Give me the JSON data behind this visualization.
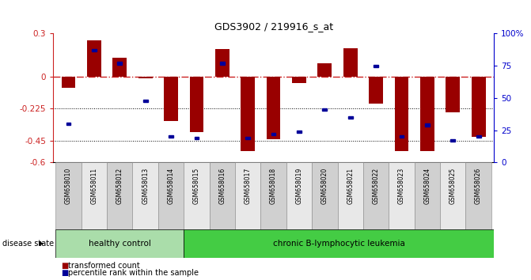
{
  "title": "GDS3902 / 219916_s_at",
  "samples": [
    "GSM658010",
    "GSM658011",
    "GSM658012",
    "GSM658013",
    "GSM658014",
    "GSM658015",
    "GSM658016",
    "GSM658017",
    "GSM658018",
    "GSM658019",
    "GSM658020",
    "GSM658021",
    "GSM658022",
    "GSM658023",
    "GSM658024",
    "GSM658025",
    "GSM658026"
  ],
  "red_values": [
    -0.08,
    0.255,
    0.13,
    -0.01,
    -0.31,
    -0.39,
    0.19,
    -0.52,
    -0.44,
    -0.045,
    0.09,
    0.2,
    -0.19,
    -0.52,
    -0.52,
    -0.25,
    -0.42
  ],
  "blue_pct": [
    30,
    87,
    77,
    48,
    20,
    19,
    77,
    19,
    22,
    24,
    41,
    35,
    75,
    20,
    29,
    17,
    20
  ],
  "ylim_left": [
    -0.6,
    0.3
  ],
  "ylim_right": [
    0,
    100
  ],
  "yticks_left": [
    -0.6,
    -0.45,
    -0.225,
    0.0,
    0.3
  ],
  "ytick_labels_left": [
    "-0.6",
    "-0.45",
    "-0.225",
    "0",
    "0.3"
  ],
  "yticks_right": [
    0,
    25,
    50,
    75,
    100
  ],
  "ytick_labels_right": [
    "0",
    "25",
    "50",
    "75",
    "100%"
  ],
  "hline_zero": 0.0,
  "hline_dotted1": -0.225,
  "hline_dotted2": -0.45,
  "healthy_count": 5,
  "leukemia_count": 12,
  "bar_color": "#990000",
  "dot_color": "#000099",
  "background_color": "#ffffff",
  "healthy_label": "healthy control",
  "leukemia_label": "chronic B-lymphocytic leukemia",
  "legend_red": "transformed count",
  "legend_blue": "percentile rank within the sample",
  "disease_label": "disease state",
  "healthy_color": "#aaddaa",
  "leukemia_color": "#44cc44",
  "xtick_bg_odd": "#d0d0d0",
  "xtick_bg_even": "#e8e8e8",
  "bar_width": 0.55
}
